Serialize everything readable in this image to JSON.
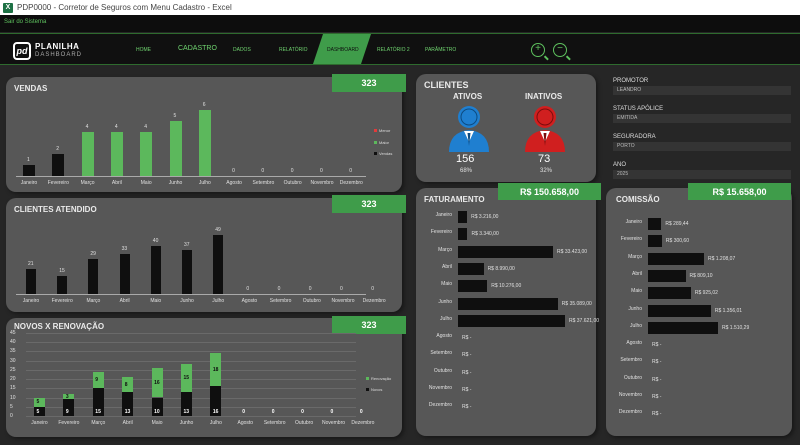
{
  "window": {
    "title": "PDP0000 - Corretor de Seguros com Menu Cadastro - Excel",
    "app_icon": "X"
  },
  "exit_link": "Sair do Sistema",
  "logo": {
    "mark": "pd",
    "name": "PLANILHA",
    "sub": "DASHBOARD"
  },
  "nav": {
    "home": "HOME",
    "cadastro": "CADASTRO",
    "dados": "DADOS",
    "relatorio": "RELATÓRIO",
    "dashboard": "DASHBOARD",
    "relatorio2": "RELATÓRIO 2",
    "parametro": "PARÂMETRO"
  },
  "months": [
    "Janeiro",
    "Fevereiro",
    "Março",
    "Abril",
    "Maio",
    "Junho",
    "Julho",
    "Agosto",
    "Setembro",
    "Outubro",
    "Novembro",
    "Dezembro"
  ],
  "vendas": {
    "title": "VENDAS",
    "badge": "323",
    "legend": [
      "Menor",
      "Maior",
      "Vendas"
    ],
    "values": [
      1,
      2,
      4,
      4,
      4,
      5,
      6,
      0,
      0,
      0,
      0,
      0
    ],
    "colors": [
      "#0f0f0f",
      "#0f0f0f",
      "#5cb85c",
      "#5cb85c",
      "#5cb85c",
      "#5cb85c",
      "#5cb85c",
      "#0f0f0f",
      "#0f0f0f",
      "#0f0f0f",
      "#0f0f0f",
      "#0f0f0f"
    ]
  },
  "clientes_atendido": {
    "title": "CLIENTES ATENDIDO",
    "badge": "323",
    "values": [
      21,
      15,
      29,
      33,
      40,
      37,
      49,
      0,
      0,
      0,
      0,
      0
    ]
  },
  "novos_renovacao": {
    "title": "NOVOS X RENOVAÇÃO",
    "badge": "323",
    "y_ticks": [
      "45",
      "40",
      "35",
      "30",
      "25",
      "20",
      "15",
      "10",
      "5",
      "0"
    ],
    "novos": [
      5,
      9,
      15,
      13,
      10,
      13,
      16,
      0,
      0,
      0,
      0,
      0
    ],
    "renovacao": [
      5,
      3,
      9,
      8,
      16,
      15,
      18,
      0,
      0,
      0,
      0,
      0
    ],
    "legend": [
      "Renovação",
      "Novos"
    ]
  },
  "clientes": {
    "title": "CLIENTES",
    "ativos_label": "ATIVOS",
    "ativos_value": "156",
    "ativos_pct": "68%",
    "inativos_label": "INATIVOS",
    "inativos_value": "73",
    "inativos_pct": "32%"
  },
  "filters": {
    "promotor_label": "PROMOTOR",
    "promotor_value": "LEANDRO",
    "status_label": "STATUS APÓLICE",
    "status_value": "EMITIDA",
    "seguradora_label": "SEGURADORA",
    "seguradora_value": "PORTO",
    "ano_label": "ANO",
    "ano_value": "2025"
  },
  "faturamento": {
    "title": "FATURAMENTO",
    "badge": "R$ 150.658,00",
    "values": [
      3216,
      3340,
      33423,
      8990,
      10276,
      35089,
      37621,
      0,
      0,
      0,
      0,
      0
    ],
    "labels": [
      "R$ 3.216,00",
      "R$ 3.340,00",
      "R$ 33.423,00",
      "R$ 8.990,00",
      "R$ 10.276,00",
      "R$ 35.089,00",
      "R$ 37.621,00",
      "R$ -",
      "R$ -",
      "R$ -",
      "R$ -",
      "R$ -"
    ]
  },
  "comissao": {
    "title": "COMISSÃO",
    "badge": "R$ 15.658,00",
    "values": [
      289.44,
      300.6,
      1208.07,
      809.1,
      925.02,
      1356.01,
      1510.29,
      0,
      0,
      0,
      0,
      0
    ],
    "labels": [
      "R$ 289,44",
      "R$ 300,60",
      "R$ 1.208,07",
      "R$ 809,10",
      "R$ 925,02",
      "R$ 1.356,01",
      "R$ 1.510,29",
      "R$ -",
      "R$ -",
      "R$ -",
      "R$ -",
      "R$ -"
    ]
  }
}
